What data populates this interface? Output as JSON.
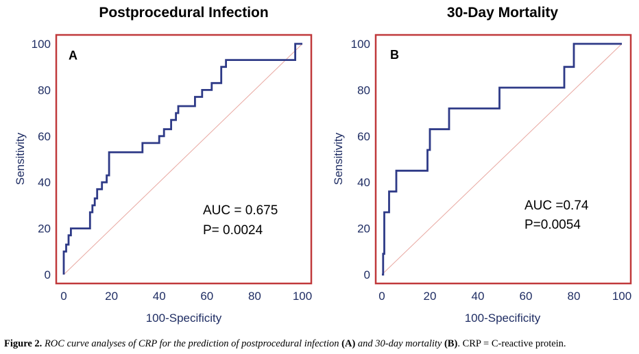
{
  "chart_data": [
    {
      "type": "line",
      "panel": "A",
      "title": "Postprocedural Infection",
      "xlabel": "100-Specificity",
      "ylabel": "Sensitivity",
      "xlim": [
        0,
        100
      ],
      "ylim": [
        0,
        100
      ],
      "xticks": [
        0,
        20,
        40,
        60,
        80,
        100
      ],
      "yticks": [
        0,
        20,
        40,
        60,
        80,
        100
      ],
      "auc_text": "AUC = 0.675",
      "p_text": "P= 0.0024",
      "series": [
        {
          "name": "ROC",
          "color": "#2e3a87",
          "x": [
            0,
            0,
            1,
            1,
            2,
            2,
            3,
            3,
            11,
            11,
            12,
            12,
            13,
            13,
            14,
            14,
            16,
            16,
            18,
            18,
            19,
            19,
            33,
            33,
            40,
            40,
            42,
            42,
            45,
            45,
            47,
            47,
            48,
            48,
            50,
            50,
            55,
            55,
            58,
            58,
            60,
            60,
            62,
            62,
            66,
            66,
            68,
            68,
            85,
            85,
            97,
            97,
            100
          ],
          "y": [
            0,
            10,
            10,
            13,
            13,
            17,
            17,
            20,
            20,
            27,
            27,
            30,
            30,
            33,
            33,
            37,
            37,
            40,
            40,
            43,
            43,
            53,
            53,
            57,
            57,
            60,
            60,
            63,
            63,
            67,
            67,
            70,
            70,
            73,
            73,
            73,
            73,
            77,
            77,
            80,
            80,
            80,
            80,
            83,
            83,
            90,
            90,
            93,
            93,
            93,
            93,
            100,
            100
          ]
        },
        {
          "name": "Reference",
          "color": "#e8a7a0",
          "x": [
            0,
            100
          ],
          "y": [
            0,
            100
          ]
        }
      ]
    },
    {
      "type": "line",
      "panel": "B",
      "title": "30-Day Mortality",
      "xlabel": "100-Specificity",
      "ylabel": "Sensitivity",
      "xlim": [
        0,
        100
      ],
      "ylim": [
        0,
        100
      ],
      "xticks": [
        0,
        20,
        40,
        60,
        80,
        100
      ],
      "yticks": [
        0,
        20,
        40,
        60,
        80,
        100
      ],
      "auc_text": "AUC =0.74",
      "p_text": "P=0.0054",
      "series": [
        {
          "name": "ROC",
          "color": "#2e3a87",
          "x": [
            0,
            0.5,
            0.5,
            1,
            1,
            3,
            3,
            6,
            6,
            19,
            19,
            20,
            20,
            28,
            28,
            49,
            49,
            76,
            76,
            80,
            80,
            100
          ],
          "y": [
            0,
            0,
            9,
            9,
            27,
            27,
            36,
            36,
            45,
            45,
            54,
            54,
            63,
            63,
            72,
            72,
            81,
            81,
            90,
            90,
            100,
            100
          ]
        },
        {
          "name": "Reference",
          "color": "#e8a7a0",
          "x": [
            0,
            100
          ],
          "y": [
            0,
            100
          ]
        }
      ]
    }
  ],
  "caption": {
    "label": "Figure 2.",
    "text1": "ROC curve analyses of CRP for the prediction of postprocedural infection",
    "refA": "(A)",
    "text2": "and 30-day mortality",
    "refB": "(B)",
    "text3": ". CRP = C-reactive protein."
  },
  "colors": {
    "axis_frame": "#c0393b",
    "roc_line": "#2e3a87",
    "reference_line": "#e8a7a0",
    "tick_text": "#1f2d63"
  }
}
